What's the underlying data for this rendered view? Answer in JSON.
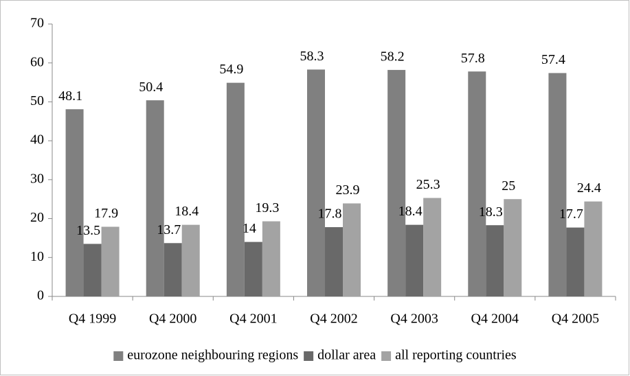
{
  "chart_data": {
    "type": "bar",
    "categories": [
      "Q4 1999",
      "Q4 2000",
      "Q4 2001",
      "Q4 2002",
      "Q4 2003",
      "Q4 2004",
      "Q4 2005"
    ],
    "series": [
      {
        "name": "eurozone neighbouring regions",
        "color": "#808080",
        "values": [
          48.1,
          50.4,
          54.9,
          58.3,
          58.2,
          57.8,
          57.4
        ]
      },
      {
        "name": "dollar area",
        "color": "#696969",
        "values": [
          13.5,
          13.7,
          14,
          17.8,
          18.4,
          18.3,
          17.7
        ]
      },
      {
        "name": "all reporting countries",
        "color": "#a3a3a3",
        "values": [
          17.9,
          18.4,
          19.3,
          23.9,
          25.3,
          25,
          24.4
        ]
      }
    ],
    "ylim": [
      0,
      70
    ],
    "yticks": [
      0,
      10,
      20,
      30,
      40,
      50,
      60,
      70
    ],
    "legend": "bottom"
  }
}
